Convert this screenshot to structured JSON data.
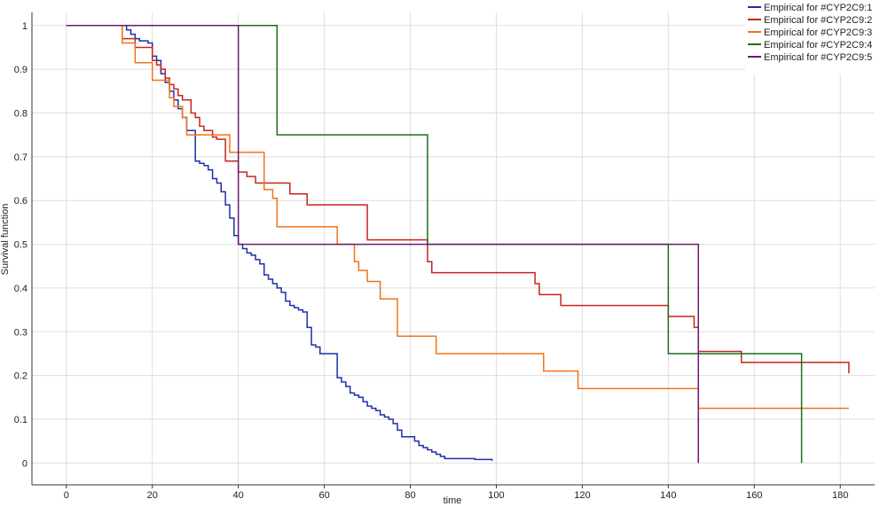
{
  "chart_data": {
    "type": "line",
    "step": true,
    "xlabel": "time",
    "ylabel": "Survival function",
    "xlim": [
      -8,
      188
    ],
    "ylim": [
      -0.05,
      1.03
    ],
    "xticks": [
      0,
      20,
      40,
      60,
      80,
      100,
      120,
      140,
      160,
      180
    ],
    "yticks": [
      0,
      0.1,
      0.2,
      0.3,
      0.4,
      0.5,
      0.6,
      0.7,
      0.8,
      0.9,
      1
    ],
    "grid": true,
    "legend": "top-right",
    "series": [
      {
        "name": "Empirical for #CYP2C9:1",
        "color": "#1f2fa8",
        "x": [
          0,
          14,
          15,
          16,
          17,
          19,
          20,
          21,
          22,
          23,
          24,
          25,
          26,
          27,
          28,
          30,
          31,
          32,
          33,
          34,
          35,
          36,
          37,
          38,
          39,
          40,
          41,
          42,
          43,
          44,
          45,
          46,
          47,
          48,
          49,
          50,
          51,
          52,
          53,
          54,
          55,
          56,
          57,
          58,
          59,
          60,
          61,
          62,
          63,
          64,
          65,
          66,
          67,
          68,
          69,
          70,
          71,
          72,
          73,
          74,
          75,
          76,
          77,
          78,
          80,
          81,
          82,
          83,
          84,
          85,
          86,
          87,
          88,
          90,
          92,
          95,
          99
        ],
        "y": [
          1,
          0.99,
          0.98,
          0.97,
          0.965,
          0.96,
          0.93,
          0.92,
          0.89,
          0.87,
          0.85,
          0.83,
          0.81,
          0.79,
          0.76,
          0.69,
          0.685,
          0.68,
          0.67,
          0.65,
          0.64,
          0.62,
          0.59,
          0.56,
          0.52,
          0.5,
          0.49,
          0.48,
          0.475,
          0.465,
          0.455,
          0.43,
          0.42,
          0.41,
          0.4,
          0.39,
          0.37,
          0.36,
          0.355,
          0.35,
          0.345,
          0.31,
          0.27,
          0.265,
          0.25,
          0.25,
          0.25,
          0.25,
          0.195,
          0.185,
          0.175,
          0.16,
          0.155,
          0.15,
          0.14,
          0.13,
          0.125,
          0.12,
          0.11,
          0.105,
          0.1,
          0.09,
          0.075,
          0.06,
          0.06,
          0.05,
          0.04,
          0.035,
          0.03,
          0.025,
          0.02,
          0.015,
          0.01,
          0.01,
          0.01,
          0.008,
          0.005
        ]
      },
      {
        "name": "Empirical for #CYP2C9:2",
        "color": "#c8241c",
        "x": [
          0,
          13,
          16,
          20,
          21,
          22,
          23,
          24,
          25,
          26,
          27,
          29,
          30,
          31,
          32,
          34,
          35,
          37,
          40,
          42,
          44,
          48,
          52,
          56,
          70,
          84,
          85,
          109,
          110,
          115,
          140,
          146,
          147,
          157,
          172,
          182
        ],
        "y": [
          1,
          0.97,
          0.95,
          0.92,
          0.91,
          0.9,
          0.88,
          0.865,
          0.855,
          0.84,
          0.83,
          0.8,
          0.79,
          0.77,
          0.76,
          0.745,
          0.74,
          0.69,
          0.665,
          0.655,
          0.64,
          0.64,
          0.615,
          0.59,
          0.51,
          0.46,
          0.435,
          0.41,
          0.385,
          0.36,
          0.335,
          0.31,
          0.255,
          0.23,
          0.23,
          0.205
        ]
      },
      {
        "name": "Empirical for #CYP2C9:3",
        "color": "#f07418",
        "x": [
          0,
          13,
          16,
          20,
          24,
          25,
          27,
          28,
          38,
          40,
          46,
          48,
          49,
          63,
          67,
          68,
          70,
          73,
          77,
          86,
          111,
          119,
          147,
          182
        ],
        "y": [
          1,
          0.96,
          0.915,
          0.875,
          0.835,
          0.815,
          0.79,
          0.75,
          0.71,
          0.71,
          0.625,
          0.605,
          0.54,
          0.5,
          0.46,
          0.44,
          0.415,
          0.375,
          0.29,
          0.25,
          0.21,
          0.17,
          0.125,
          0.125
        ]
      },
      {
        "name": "Empirical for #CYP2C9:4",
        "color": "#1a7016",
        "x": [
          0,
          49,
          84,
          140,
          171
        ],
        "y": [
          1,
          0.75,
          0.5,
          0.25,
          0.0
        ]
      },
      {
        "name": "Empirical for #CYP2C9:5",
        "color": "#6a1a70",
        "x": [
          0,
          40,
          147
        ],
        "y": [
          1,
          0.5,
          0.0
        ]
      }
    ]
  }
}
